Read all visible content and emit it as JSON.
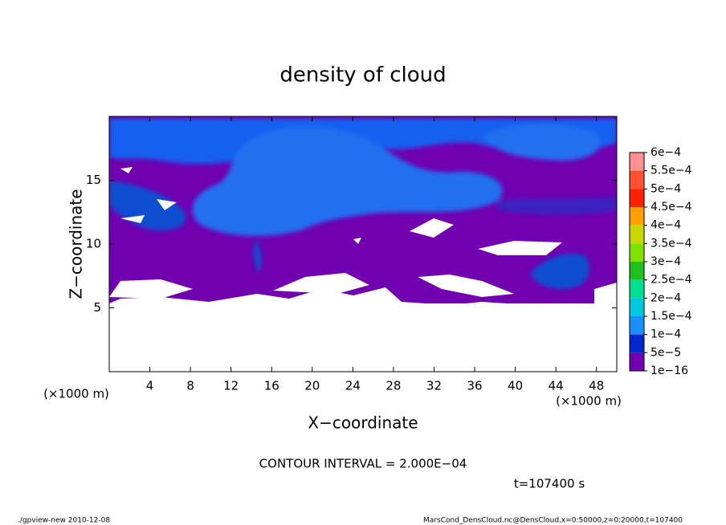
{
  "chart_data": {
    "type": "contour",
    "title": "density of cloud",
    "xlabel": "X−coordinate",
    "ylabel": "Z−coordinate",
    "x_unit": "(×1000 m)",
    "xlim": [
      0,
      50
    ],
    "xticks": [
      4,
      8,
      12,
      16,
      20,
      24,
      28,
      32,
      36,
      40,
      44,
      48
    ],
    "ylim": [
      0,
      20
    ],
    "yticks": [
      5,
      10,
      15
    ],
    "colorbar": {
      "levels": [
        {
          "value": 0.0006,
          "label": "6e−4"
        },
        {
          "value": 0.00055,
          "label": "5.5e−4"
        },
        {
          "value": 0.0005,
          "label": "5e−4"
        },
        {
          "value": 0.00045,
          "label": "4.5e−4"
        },
        {
          "value": 0.0004,
          "label": "4e−4"
        },
        {
          "value": 0.00035,
          "label": "3.5e−4"
        },
        {
          "value": 0.0003,
          "label": "3e−4"
        },
        {
          "value": 0.00025,
          "label": "2.5e−4"
        },
        {
          "value": 0.0002,
          "label": "2e−4"
        },
        {
          "value": 0.00015,
          "label": "1.5e−4"
        },
        {
          "value": 0.0001,
          "label": "1e−4"
        },
        {
          "value": 5e-05,
          "label": "5e−5"
        },
        {
          "value": 1e-16,
          "label": "1e−16"
        }
      ],
      "colors": [
        "#ff9090",
        "#ff5030",
        "#ff2000",
        "#ffa000",
        "#c8d800",
        "#80e000",
        "#20c020",
        "#00e090",
        "#00c8e0",
        "#1890ff",
        "#0028d0",
        "#7000b0"
      ]
    },
    "annotations": [
      "CONTOUR INTERVAL = 2.000E−04",
      "t=107400 s"
    ],
    "footer_left": "./gpview-new  2010-12-08",
    "footer_right": "MarsCond_DensCloud.nc@DensCloud,x=0:50000,z=0:20000,t=107400"
  }
}
